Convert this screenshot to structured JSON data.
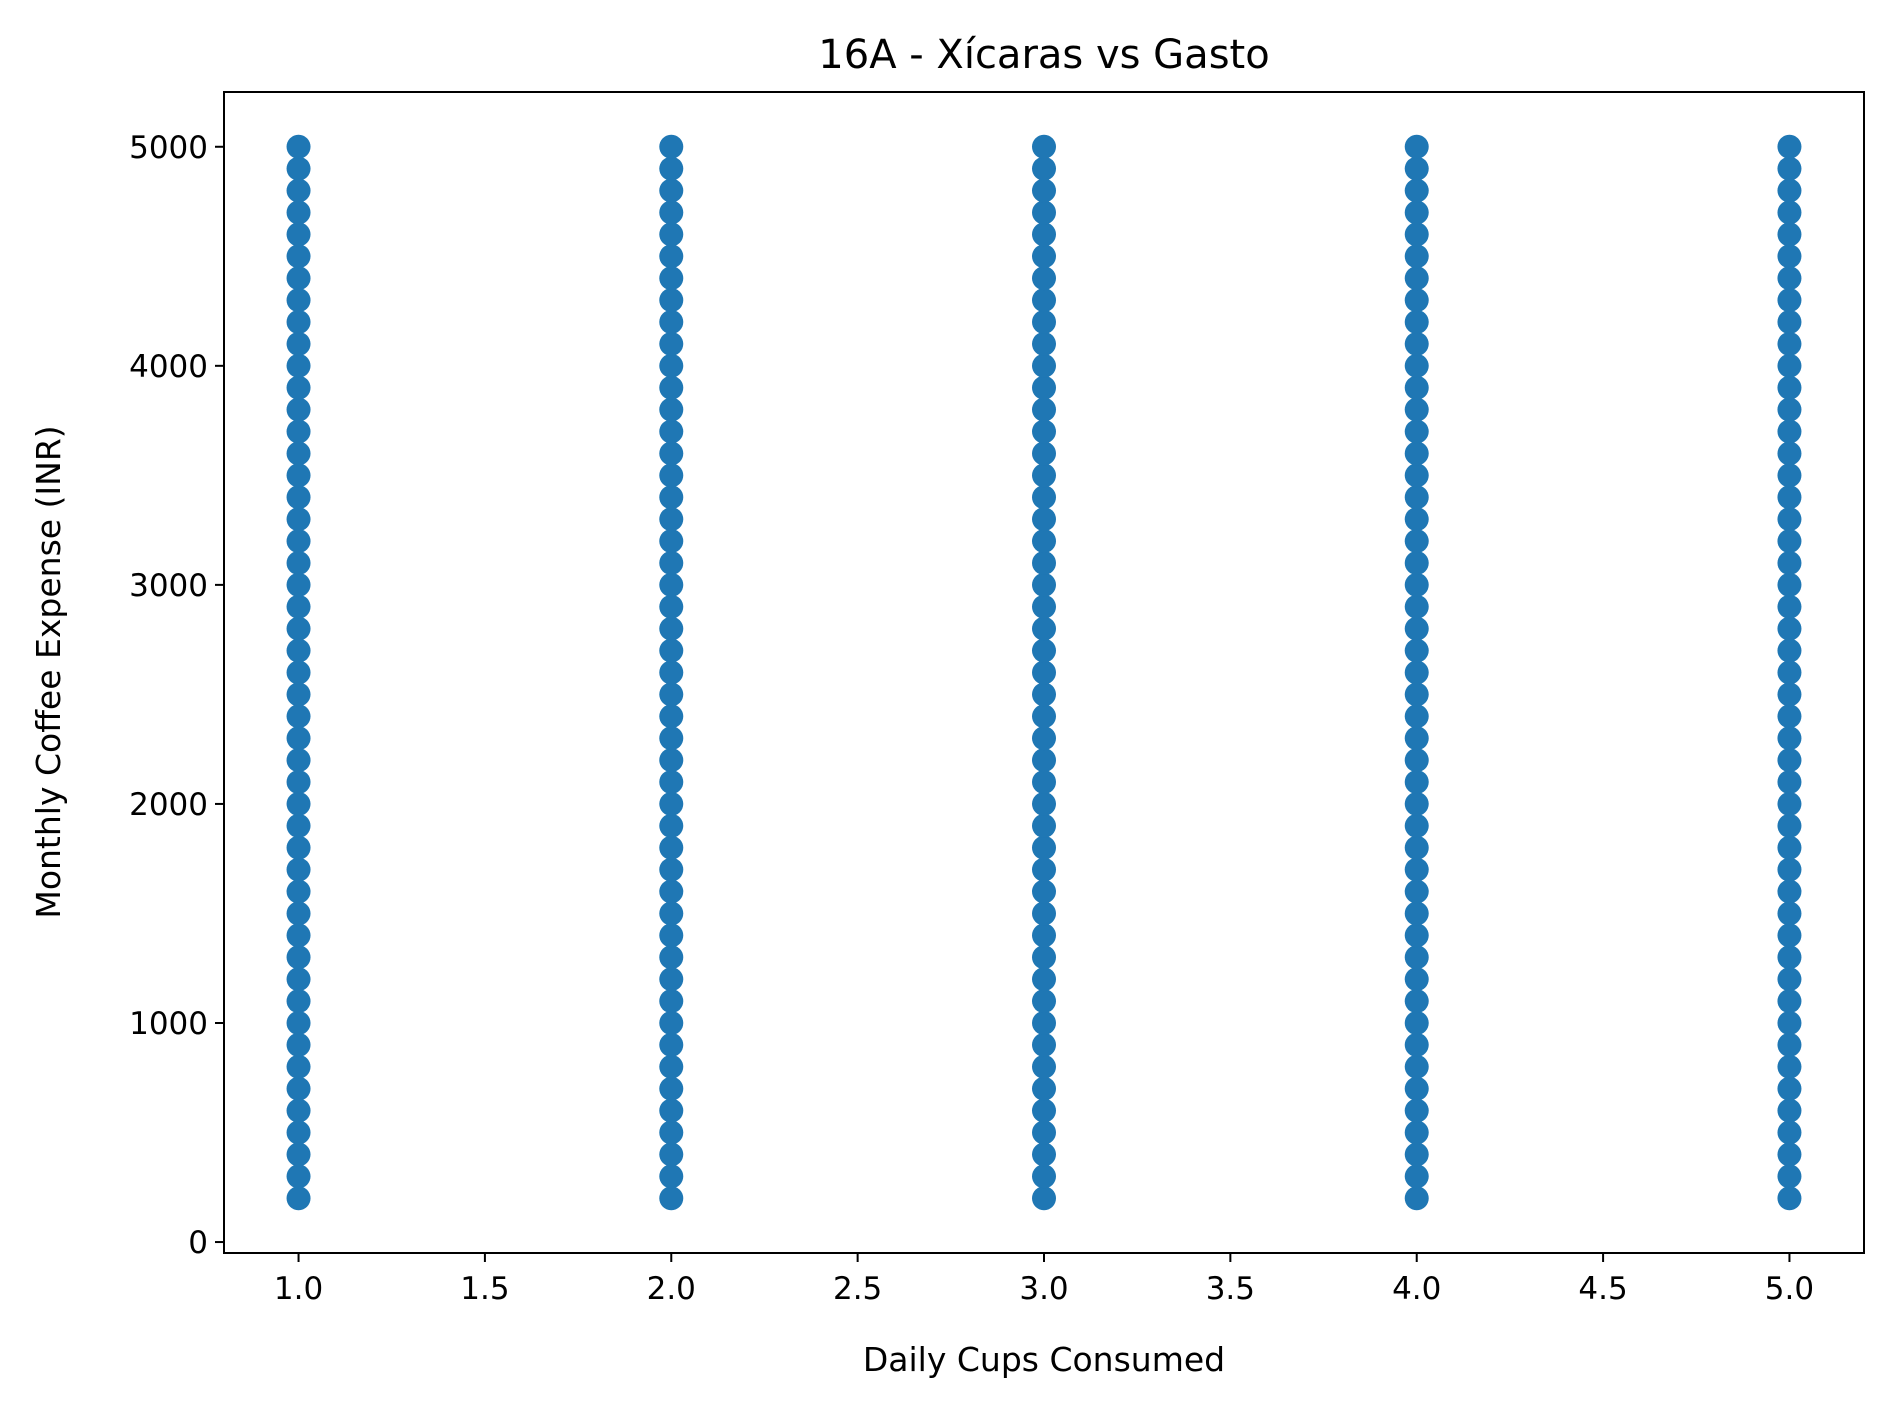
{
  "chart_data": {
    "type": "scatter",
    "title": "16A - Xícaras vs Gasto",
    "xlabel": "Daily Cups Consumed",
    "ylabel": "Monthly Coffee Expense (INR)",
    "xlim": [
      0.8,
      5.2
    ],
    "ylim": [
      -50,
      5250
    ],
    "xticks": [
      1.0,
      1.5,
      2.0,
      2.5,
      3.0,
      3.5,
      4.0,
      4.5,
      5.0
    ],
    "xtick_labels": [
      "1.0",
      "1.5",
      "2.0",
      "2.5",
      "3.0",
      "3.5",
      "4.0",
      "4.5",
      "5.0"
    ],
    "yticks": [
      0,
      1000,
      2000,
      3000,
      4000,
      5000
    ],
    "ytick_labels": [
      "0",
      "1000",
      "2000",
      "3000",
      "4000",
      "5000"
    ],
    "grid": false,
    "legend": false,
    "point_color": "#1f77b4",
    "x_values": [
      1,
      2,
      3,
      4,
      5
    ],
    "y_range_per_x": [
      200,
      5000
    ],
    "y_step": 100
  }
}
